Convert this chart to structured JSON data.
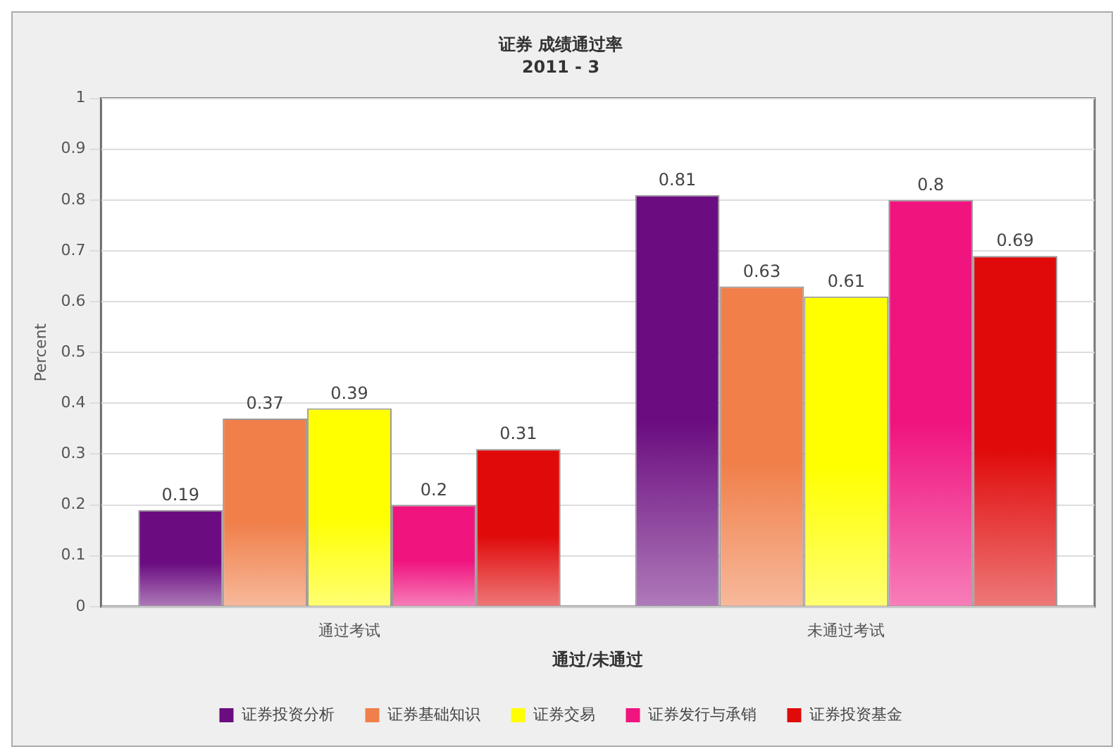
{
  "chart_data": {
    "type": "bar",
    "title": "证券 成绩通过率",
    "subtitle": "2011 - 3",
    "xlabel": "通过/未通过",
    "ylabel": "Percent",
    "categories": [
      "通过考试",
      "未通过考试"
    ],
    "series": [
      {
        "name": "证券投资分析",
        "color": "#6b0d80",
        "values": [
          0.19,
          0.81
        ]
      },
      {
        "name": "证券基础知识",
        "color": "#f07f4a",
        "values": [
          0.37,
          0.63
        ]
      },
      {
        "name": "证券交易",
        "color": "#ffff00",
        "values": [
          0.39,
          0.61
        ]
      },
      {
        "name": "证券发行与承销",
        "color": "#f0147f",
        "values": [
          0.2,
          0.8
        ]
      },
      {
        "name": "证券投资基金",
        "color": "#e00a0a",
        "values": [
          0.31,
          0.69
        ]
      }
    ],
    "ylim": [
      0,
      1
    ],
    "yticks": [
      0,
      0.1,
      0.2,
      0.3,
      0.4,
      0.5,
      0.6,
      0.7,
      0.8,
      0.9,
      1
    ],
    "grid": "y",
    "legend": "bottom",
    "data_labels": true
  }
}
